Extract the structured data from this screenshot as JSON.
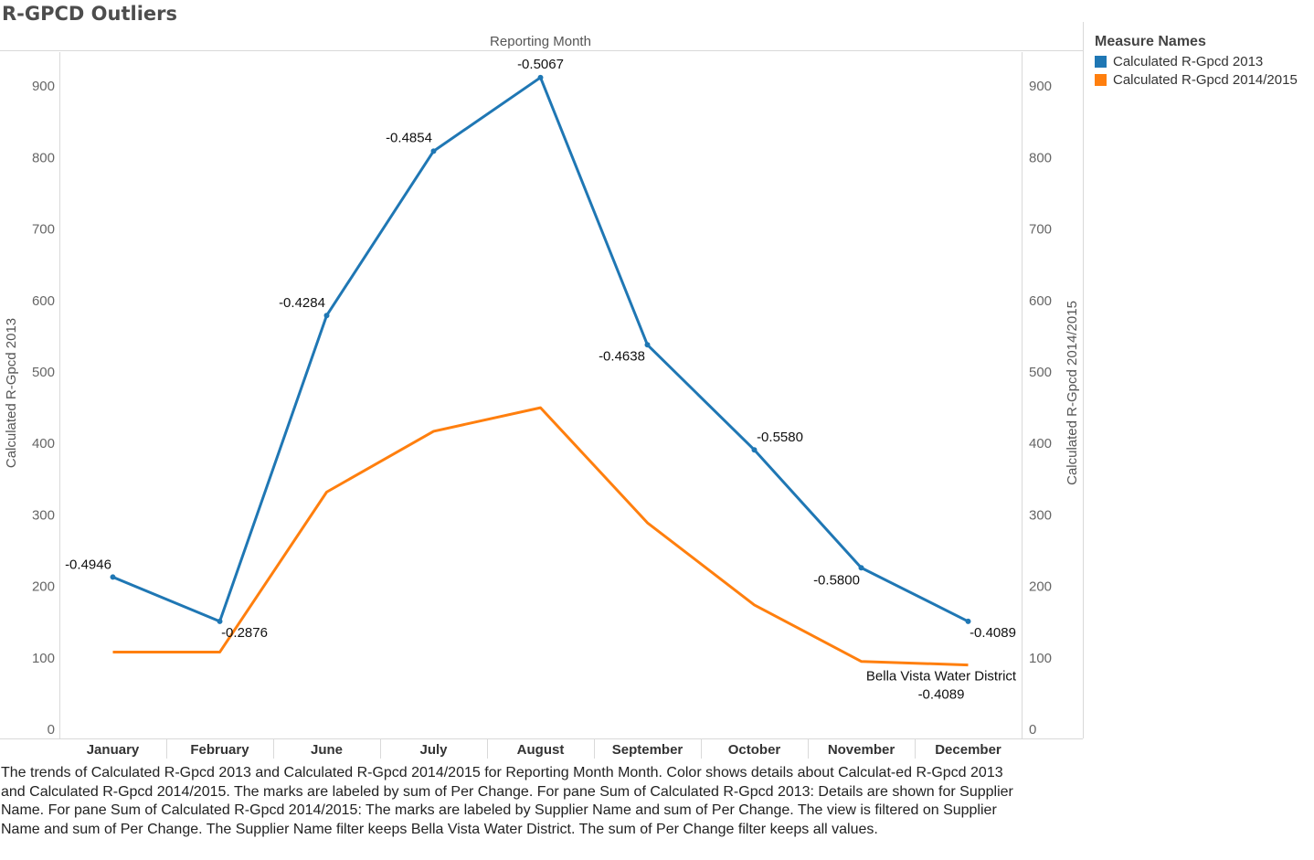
{
  "title": "R-GPCD Outliers",
  "legend": {
    "title": "Measure Names",
    "items": [
      {
        "label": "Calculated R-Gpcd 2013",
        "color": "#1f77b4"
      },
      {
        "label": "Calculated R-Gpcd 2014/2015",
        "color": "#ff7f0e"
      }
    ]
  },
  "caption": "The trends of Calculated R-Gpcd 2013 and Calculated R-Gpcd 2014/2015 for Reporting Month Month.  Color shows details about Calculat-ed R-Gpcd 2013 and Calculated R-Gpcd 2014/2015.  The marks are labeled by sum of Per Change.  For pane Sum of Calculated R-Gpcd 2013:  Details are shown for Supplier Name.  For pane Sum of Calculated R-Gpcd 2014/2015:  The marks are labeled by Supplier Name and sum of Per Change. The view is filtered on Supplier Name and sum of Per Change. The Supplier Name filter keeps Bella Vista Water District. The sum of Per Change filter keeps all values.",
  "chart_data": {
    "type": "line",
    "xlabel": "Reporting Month",
    "ylabel": "Calculated R-Gpcd 2013",
    "ylabel_right": "Calculated R-Gpcd 2014/2015",
    "ylim": [
      0,
      970
    ],
    "yticks": [
      0,
      100,
      200,
      300,
      400,
      500,
      600,
      700,
      800,
      900
    ],
    "grid": false,
    "legend_position": "top-right",
    "categories": [
      "January",
      "February",
      "June",
      "July",
      "August",
      "September",
      "October",
      "November",
      "December"
    ],
    "series": [
      {
        "name": "Calculated R-Gpcd 2013",
        "color": "#1f77b4",
        "axis": "left",
        "markers": true,
        "values": [
          213,
          151,
          579,
          809,
          912,
          538,
          391,
          226,
          151
        ],
        "labels": [
          "-0.4946",
          "-0.2876",
          "-0.4284",
          "-0.4854",
          "-0.5067",
          "-0.4638",
          "-0.5580",
          "-0.5800",
          "-0.4089"
        ]
      },
      {
        "name": "Calculated R-Gpcd 2014/2015",
        "color": "#ff7f0e",
        "axis": "right",
        "markers": false,
        "values": [
          108,
          108,
          332,
          417,
          450,
          289,
          174,
          95,
          90
        ],
        "end_label": {
          "supplier": "Bella Vista Water District",
          "value": "-0.4089"
        }
      }
    ]
  }
}
